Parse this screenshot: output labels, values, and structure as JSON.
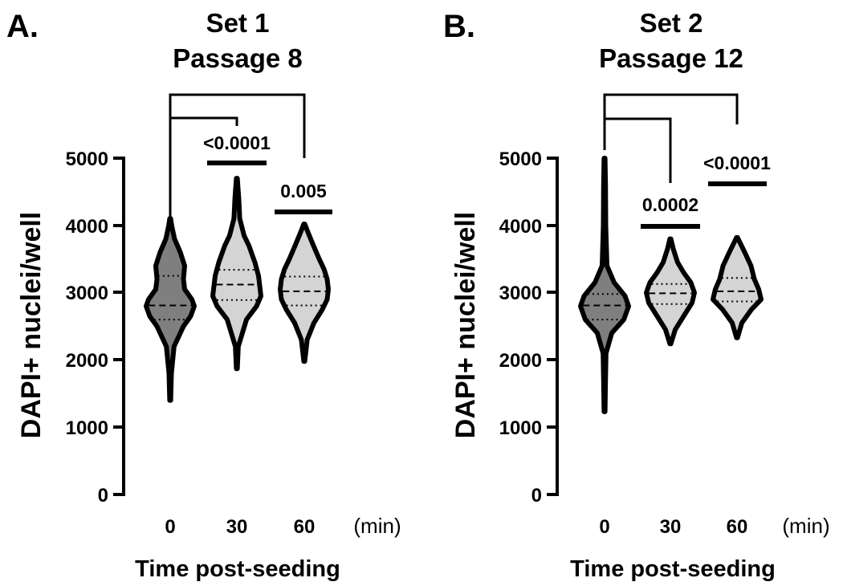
{
  "chart_data": [
    {
      "panel_label": "A.",
      "type": "violin",
      "title_lines": [
        "Set 1",
        "Passage 8"
      ],
      "ylabel": "DAPI+ nuclei/well",
      "xlabel": "Time post-seeding",
      "x_unit": "(min)",
      "categories": [
        "0",
        "30",
        "60"
      ],
      "ylim": [
        0,
        5000
      ],
      "yticks": [
        0,
        1000,
        2000,
        3000,
        4000,
        5000
      ],
      "violins": [
        {
          "category": "0",
          "min": 1400,
          "max": 4100,
          "q1": 2600,
          "median": 2810,
          "q3": 3250,
          "fill": "#7f7f7f",
          "profile": [
            [
              1400,
              0.02
            ],
            [
              1800,
              0.05
            ],
            [
              2200,
              0.16
            ],
            [
              2500,
              0.55
            ],
            [
              2650,
              0.85
            ],
            [
              2800,
              1.0
            ],
            [
              2900,
              0.9
            ],
            [
              3050,
              0.6
            ],
            [
              3200,
              0.55
            ],
            [
              3400,
              0.6
            ],
            [
              3600,
              0.42
            ],
            [
              3800,
              0.18
            ],
            [
              4000,
              0.06
            ],
            [
              4100,
              0.02
            ]
          ]
        },
        {
          "category": "30",
          "min": 1870,
          "max": 4700,
          "q1": 2890,
          "median": 3120,
          "q3": 3340,
          "fill": "#d4d4d4",
          "profile": [
            [
              1870,
              0.02
            ],
            [
              2200,
              0.06
            ],
            [
              2600,
              0.4
            ],
            [
              2800,
              0.82
            ],
            [
              2950,
              1.0
            ],
            [
              3100,
              0.95
            ],
            [
              3250,
              0.9
            ],
            [
              3450,
              0.75
            ],
            [
              3700,
              0.5
            ],
            [
              3850,
              0.3
            ],
            [
              4100,
              0.12
            ],
            [
              4400,
              0.08
            ],
            [
              4700,
              0.02
            ]
          ]
        },
        {
          "category": "60",
          "min": 1980,
          "max": 4020,
          "q1": 2810,
          "median": 3020,
          "q3": 3240,
          "fill": "#d4d4d4",
          "profile": [
            [
              1980,
              0.02
            ],
            [
              2300,
              0.12
            ],
            [
              2550,
              0.4
            ],
            [
              2750,
              0.75
            ],
            [
              2900,
              0.95
            ],
            [
              3050,
              1.0
            ],
            [
              3200,
              0.95
            ],
            [
              3350,
              0.82
            ],
            [
              3500,
              0.62
            ],
            [
              3700,
              0.38
            ],
            [
              3900,
              0.15
            ],
            [
              4020,
              0.02
            ]
          ]
        }
      ],
      "comparisons": [
        {
          "from": "0",
          "to": "30",
          "p": ""
        },
        {
          "from": "0",
          "to": "60",
          "p": ""
        },
        {
          "from": "30",
          "to": "30",
          "p": "<0.0001",
          "y": 4930
        },
        {
          "from": "60",
          "to": "60",
          "p": "0.005",
          "y": 4200
        }
      ]
    },
    {
      "panel_label": "B.",
      "type": "violin",
      "title_lines": [
        "Set 2",
        "Passage 12"
      ],
      "ylabel": "DAPI+ nuclei/well",
      "xlabel": "Time post-seeding",
      "x_unit": "(min)",
      "categories": [
        "0",
        "30",
        "60"
      ],
      "ylim": [
        0,
        5000
      ],
      "yticks": [
        0,
        1000,
        2000,
        3000,
        4000,
        5000
      ],
      "violins": [
        {
          "category": "0",
          "min": 1230,
          "max": 5000,
          "q1": 2600,
          "median": 2810,
          "q3": 2980,
          "fill": "#7f7f7f",
          "profile": [
            [
              1230,
              0.02
            ],
            [
              1700,
              0.04
            ],
            [
              2100,
              0.06
            ],
            [
              2400,
              0.3
            ],
            [
              2600,
              0.8
            ],
            [
              2800,
              1.0
            ],
            [
              2950,
              0.85
            ],
            [
              3150,
              0.4
            ],
            [
              3400,
              0.1
            ],
            [
              4000,
              0.05
            ],
            [
              4600,
              0.04
            ],
            [
              5000,
              0.02
            ]
          ]
        },
        {
          "category": "30",
          "min": 2240,
          "max": 3800,
          "q1": 2830,
          "median": 2990,
          "q3": 3130,
          "fill": "#d4d4d4",
          "profile": [
            [
              2240,
              0.02
            ],
            [
              2450,
              0.2
            ],
            [
              2650,
              0.55
            ],
            [
              2850,
              0.9
            ],
            [
              3000,
              1.0
            ],
            [
              3150,
              0.85
            ],
            [
              3300,
              0.55
            ],
            [
              3450,
              0.3
            ],
            [
              3650,
              0.12
            ],
            [
              3800,
              0.02
            ]
          ]
        },
        {
          "category": "60",
          "min": 2330,
          "max": 3820,
          "q1": 2870,
          "median": 3020,
          "q3": 3220,
          "fill": "#d4d4d4",
          "profile": [
            [
              2330,
              0.02
            ],
            [
              2550,
              0.2
            ],
            [
              2750,
              0.6
            ],
            [
              2900,
              1.0
            ],
            [
              3050,
              0.9
            ],
            [
              3200,
              0.72
            ],
            [
              3400,
              0.58
            ],
            [
              3600,
              0.32
            ],
            [
              3820,
              0.02
            ]
          ]
        }
      ],
      "comparisons": [
        {
          "from": "0",
          "to": "30",
          "p": ""
        },
        {
          "from": "0",
          "to": "60",
          "p": ""
        },
        {
          "from": "30",
          "to": "30",
          "p": "0.0002",
          "y": 3980
        },
        {
          "from": "60",
          "to": "60",
          "p": "<0.0001",
          "y": 4630
        }
      ]
    }
  ]
}
